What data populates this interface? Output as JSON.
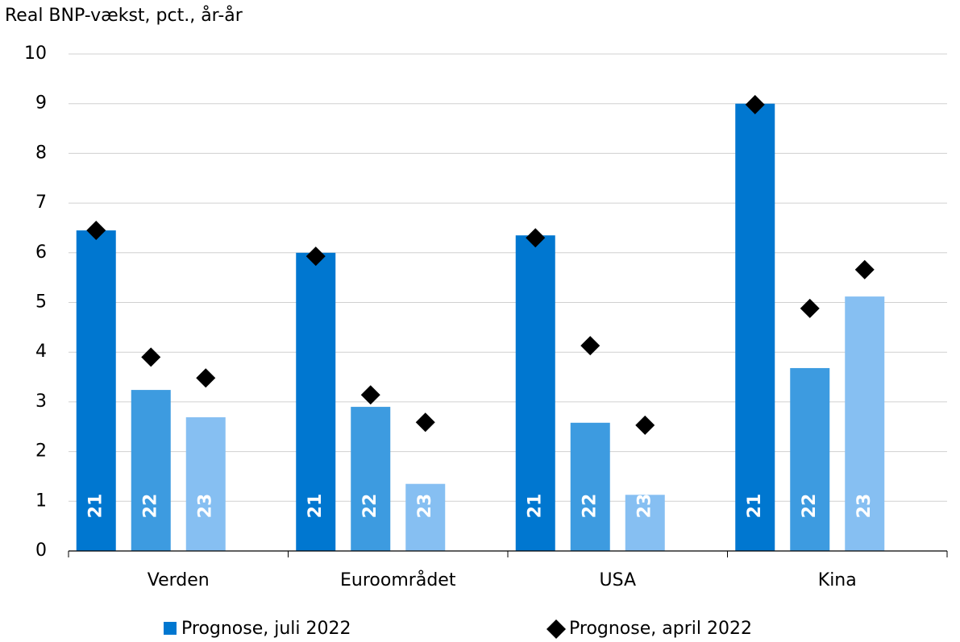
{
  "chart_data": {
    "type": "bar",
    "title": "Real BNP-vækst, pct., år-år",
    "categories": [
      "Verden",
      "Euroområdet",
      "USA",
      "Kina"
    ],
    "bar_labels": [
      "21",
      "22",
      "23"
    ],
    "series": [
      {
        "name": "Prognose, juli 2022",
        "color": "#0077d0",
        "bar_colors": [
          "#0077d0",
          "#3d9be0",
          "#86bff2"
        ],
        "values": [
          [
            6.45,
            3.24,
            2.69
          ],
          [
            6.0,
            2.9,
            1.35
          ],
          [
            6.35,
            2.58,
            1.13
          ],
          [
            9.0,
            3.68,
            5.12
          ]
        ]
      },
      {
        "name": "Prognose, april 2022",
        "color": "#000000",
        "marker": "diamond",
        "values": [
          [
            6.45,
            3.9,
            3.48
          ],
          [
            5.93,
            3.14,
            2.59
          ],
          [
            6.3,
            4.13,
            2.53
          ],
          [
            8.98,
            4.88,
            5.66
          ]
        ]
      }
    ],
    "ylim": [
      0,
      10
    ],
    "yticks": [
      0,
      1,
      2,
      3,
      4,
      5,
      6,
      7,
      8,
      9,
      10
    ],
    "grid": true
  }
}
